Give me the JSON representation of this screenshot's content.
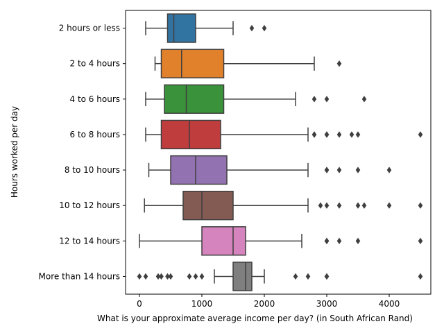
{
  "chart_data": {
    "type": "boxplot",
    "orientation": "horizontal",
    "title": "",
    "xlabel": "What is your approximate average income per day? (in South African Rand)",
    "ylabel": "Hours worked per day",
    "xlim": [
      -200,
      4750
    ],
    "xticks": [
      0,
      1000,
      2000,
      3000,
      4000
    ],
    "xtick_labels": [
      "0",
      "1000",
      "2000",
      "3000",
      "4000"
    ],
    "grid": false,
    "categories": [
      "2 hours or less",
      "2 to 4 hours",
      "4 to 6 hours",
      "6 to 8 hours",
      "8 to 10 hours",
      "10 to 12 hours",
      "12 to 14 hours",
      "More than 14 hours"
    ],
    "boxes": [
      {
        "category": "2 hours or less",
        "color": "#3274a1",
        "whisker_low": 100,
        "q1": 450,
        "median": 550,
        "q3": 900,
        "whisker_high": 1500,
        "outliers": [
          1800,
          2000
        ]
      },
      {
        "category": "2 to 4 hours",
        "color": "#e1812c",
        "whisker_low": 250,
        "q1": 350,
        "median": 675,
        "q3": 1350,
        "whisker_high": 2800,
        "outliers": [
          3200
        ]
      },
      {
        "category": "4 to 6 hours",
        "color": "#3a923a",
        "whisker_low": 100,
        "q1": 400,
        "median": 750,
        "q3": 1350,
        "whisker_high": 2500,
        "outliers": [
          2800,
          3000,
          3600
        ]
      },
      {
        "category": "6 to 8 hours",
        "color": "#c03d3e",
        "whisker_low": 100,
        "q1": 350,
        "median": 800,
        "q3": 1300,
        "whisker_high": 2700,
        "outliers": [
          2800,
          2800,
          3000,
          3000,
          3200,
          3400,
          3500,
          4500
        ]
      },
      {
        "category": "8 to 10 hours",
        "color": "#9372b2",
        "whisker_low": 150,
        "q1": 500,
        "median": 900,
        "q3": 1400,
        "whisker_high": 2700,
        "outliers": [
          3000,
          3000,
          3200,
          3500,
          4000
        ]
      },
      {
        "category": "10 to 12 hours",
        "color": "#845b53",
        "whisker_low": 80,
        "q1": 700,
        "median": 1000,
        "q3": 1500,
        "whisker_high": 2700,
        "outliers": [
          2900,
          3000,
          3200,
          3500,
          3600,
          4000,
          4500
        ]
      },
      {
        "category": "12 to 14 hours",
        "color": "#d684bd",
        "whisker_low": 0,
        "q1": 1000,
        "median": 1500,
        "q3": 1700,
        "whisker_high": 2600,
        "outliers": [
          3000,
          3000,
          3200,
          3500,
          4500
        ]
      },
      {
        "category": "More than 14 hours",
        "color": "#7f7f7f",
        "whisker_low": 1200,
        "q1": 1500,
        "median": 1700,
        "q3": 1800,
        "whisker_high": 2000,
        "outliers": [
          0,
          100,
          300,
          350,
          450,
          500,
          800,
          900,
          1000,
          2500,
          2700,
          3000,
          3000,
          4500
        ]
      }
    ]
  }
}
